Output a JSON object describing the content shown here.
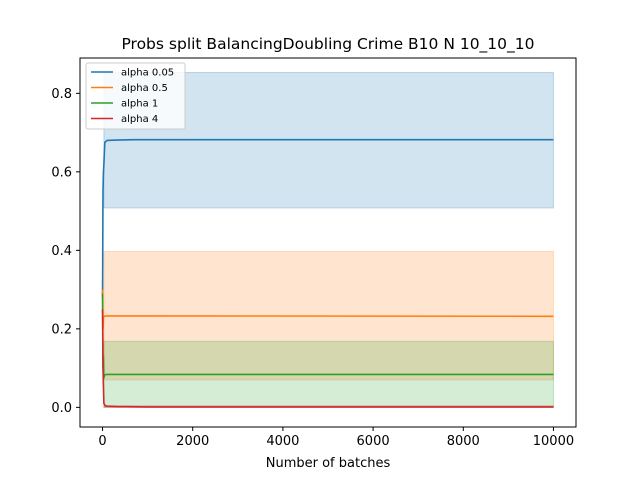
{
  "chart_data": {
    "type": "line",
    "title": "Probs split BalancingDoubling Crime B10 N 10_10_10",
    "xlabel": "Number of batches",
    "ylabel": "",
    "xlim": [
      -500,
      10500
    ],
    "ylim": [
      -0.05,
      0.89
    ],
    "x_ticks": [
      0,
      2000,
      4000,
      6000,
      8000,
      10000
    ],
    "y_ticks": [
      0.0,
      0.2,
      0.4,
      0.6,
      0.8
    ],
    "x_tick_labels": [
      "0",
      "2000",
      "4000",
      "6000",
      "8000",
      "10000"
    ],
    "y_tick_labels": [
      "0.0",
      "0.2",
      "0.4",
      "0.6",
      "0.8"
    ],
    "grid": false,
    "legend_position": "top-left",
    "series": [
      {
        "name": "alpha 0.05",
        "color": "#1f77b4",
        "x": [
          0,
          10,
          20,
          30,
          50,
          100,
          300,
          700,
          1000,
          10000
        ],
        "y": [
          0.28,
          0.55,
          0.6,
          0.62,
          0.675,
          0.68,
          0.681,
          0.682,
          0.682,
          0.682
        ],
        "band_x": [
          30,
          10000
        ],
        "band_lower": [
          0.508,
          0.508
        ],
        "band_upper": [
          0.853,
          0.853
        ]
      },
      {
        "name": "alpha 0.5",
        "color": "#ff7f0e",
        "x": [
          0,
          10,
          20,
          40,
          80,
          200,
          1000,
          10000
        ],
        "y": [
          0.3,
          0.2,
          0.23,
          0.232,
          0.233,
          0.233,
          0.233,
          0.232
        ],
        "band_x": [
          30,
          10000
        ],
        "band_lower": [
          0.07,
          0.07
        ],
        "band_upper": [
          0.397,
          0.397
        ]
      },
      {
        "name": "alpha 1",
        "color": "#2ca02c",
        "x": [
          0,
          10,
          20,
          30,
          50,
          100,
          300,
          10000
        ],
        "y": [
          0.29,
          0.1,
          0.13,
          0.075,
          0.083,
          0.084,
          0.084,
          0.084
        ],
        "band_x": [
          30,
          10000
        ],
        "band_lower": [
          0.0,
          0.0
        ],
        "band_upper": [
          0.168,
          0.168
        ]
      },
      {
        "name": "alpha 4",
        "color": "#d62728",
        "x": [
          0,
          10,
          20,
          30,
          60,
          100,
          300,
          1000,
          10000
        ],
        "y": [
          0.25,
          0.1,
          0.05,
          0.01,
          0.004,
          0.003,
          0.002,
          0.001,
          0.001
        ],
        "band_x": [
          30,
          10000
        ],
        "band_lower": [
          0.0,
          0.0
        ],
        "band_upper": [
          0.004,
          0.004
        ]
      }
    ]
  }
}
